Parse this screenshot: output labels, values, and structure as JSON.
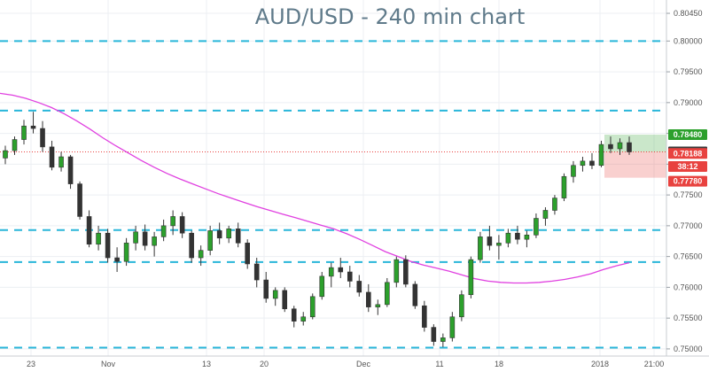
{
  "chart_data": {
    "type": "candlestick",
    "title": "AUD/USD - 240 min chart",
    "y_axis": {
      "position": "right",
      "range": [
        0.7497,
        0.8058
      ],
      "ticks": [
        "0.80450",
        "0.80000",
        "0.79500",
        "0.79000",
        "0.78500",
        "0.78000",
        "0.77500",
        "0.77000",
        "0.76500",
        "0.76000",
        "0.75500",
        "0.75000"
      ]
    },
    "x_axis": {
      "labels": [
        "23",
        "Nov",
        "13",
        "20",
        "Dec",
        "11",
        "18",
        "2018",
        "21:00"
      ]
    },
    "grid": true,
    "horizontal_levels": [
      0.8,
      0.7887,
      0.7693,
      0.7641,
      0.7502
    ],
    "series": [
      {
        "kind": "candles",
        "ohlc": [
          [
            0.781,
            0.783,
            0.78,
            0.7822
          ],
          [
            0.7822,
            0.7845,
            0.7815,
            0.784
          ],
          [
            0.784,
            0.7872,
            0.7832,
            0.7862
          ],
          [
            0.7862,
            0.7885,
            0.785,
            0.7858
          ],
          [
            0.7858,
            0.787,
            0.782,
            0.7828
          ],
          [
            0.7828,
            0.7838,
            0.779,
            0.7795
          ],
          [
            0.7795,
            0.782,
            0.7788,
            0.7812
          ],
          [
            0.7812,
            0.7815,
            0.776,
            0.7768
          ],
          [
            0.7768,
            0.7772,
            0.771,
            0.7715
          ],
          [
            0.7715,
            0.7725,
            0.7665,
            0.767
          ],
          [
            0.767,
            0.77,
            0.766,
            0.7688
          ],
          [
            0.7688,
            0.7695,
            0.764,
            0.7648
          ],
          [
            0.7648,
            0.7665,
            0.7625,
            0.7642
          ],
          [
            0.7642,
            0.768,
            0.7635,
            0.7672
          ],
          [
            0.7672,
            0.77,
            0.766,
            0.769
          ],
          [
            0.769,
            0.7702,
            0.766,
            0.7668
          ],
          [
            0.7668,
            0.769,
            0.765,
            0.7682
          ],
          [
            0.7682,
            0.771,
            0.7675,
            0.77
          ],
          [
            0.77,
            0.7725,
            0.7685,
            0.7715
          ],
          [
            0.7715,
            0.7722,
            0.768,
            0.7688
          ],
          [
            0.7688,
            0.7692,
            0.764,
            0.7648
          ],
          [
            0.7648,
            0.7668,
            0.7635,
            0.766
          ],
          [
            0.766,
            0.77,
            0.7652,
            0.7692
          ],
          [
            0.7692,
            0.7705,
            0.767,
            0.768
          ],
          [
            0.768,
            0.77,
            0.7672,
            0.7695
          ],
          [
            0.7695,
            0.7705,
            0.7665,
            0.7672
          ],
          [
            0.7672,
            0.7678,
            0.763,
            0.7638
          ],
          [
            0.7638,
            0.7648,
            0.76,
            0.7612
          ],
          [
            0.7612,
            0.7625,
            0.7575,
            0.7582
          ],
          [
            0.7582,
            0.76,
            0.757,
            0.7595
          ],
          [
            0.7595,
            0.76,
            0.756,
            0.7565
          ],
          [
            0.7565,
            0.757,
            0.7535,
            0.7545
          ],
          [
            0.7545,
            0.756,
            0.7538,
            0.7552
          ],
          [
            0.7552,
            0.759,
            0.7548,
            0.7585
          ],
          [
            0.7585,
            0.7625,
            0.758,
            0.7618
          ],
          [
            0.7618,
            0.764,
            0.76,
            0.7632
          ],
          [
            0.7632,
            0.7648,
            0.7615,
            0.7625
          ],
          [
            0.7625,
            0.7635,
            0.76,
            0.761
          ],
          [
            0.761,
            0.762,
            0.7585,
            0.7592
          ],
          [
            0.7592,
            0.7605,
            0.756,
            0.7568
          ],
          [
            0.7568,
            0.758,
            0.7555,
            0.7572
          ],
          [
            0.7572,
            0.7615,
            0.7568,
            0.7608
          ],
          [
            0.7608,
            0.765,
            0.76,
            0.7645
          ],
          [
            0.7645,
            0.7652,
            0.76,
            0.7605
          ],
          [
            0.7605,
            0.761,
            0.7565,
            0.757
          ],
          [
            0.757,
            0.7578,
            0.7528,
            0.7535
          ],
          [
            0.7535,
            0.754,
            0.7505,
            0.7512
          ],
          [
            0.7512,
            0.7525,
            0.7503,
            0.7518
          ],
          [
            0.7518,
            0.756,
            0.7512,
            0.7552
          ],
          [
            0.7552,
            0.7595,
            0.7545,
            0.7588
          ],
          [
            0.7588,
            0.765,
            0.7582,
            0.7645
          ],
          [
            0.7645,
            0.769,
            0.764,
            0.7682
          ],
          [
            0.7682,
            0.77,
            0.766,
            0.7668
          ],
          [
            0.7668,
            0.7685,
            0.7645,
            0.7672
          ],
          [
            0.7672,
            0.7695,
            0.7665,
            0.7688
          ],
          [
            0.7688,
            0.77,
            0.767,
            0.7678
          ],
          [
            0.7678,
            0.7692,
            0.7665,
            0.7685
          ],
          [
            0.7685,
            0.772,
            0.768,
            0.7712
          ],
          [
            0.7712,
            0.773,
            0.77,
            0.7725
          ],
          [
            0.7725,
            0.775,
            0.7718,
            0.7745
          ],
          [
            0.7745,
            0.7785,
            0.774,
            0.778
          ],
          [
            0.778,
            0.7805,
            0.777,
            0.7798
          ],
          [
            0.7798,
            0.7812,
            0.7788,
            0.7805
          ],
          [
            0.7805,
            0.7818,
            0.7792,
            0.7798
          ],
          [
            0.7798,
            0.7838,
            0.7795,
            0.7832
          ],
          [
            0.7832,
            0.7845,
            0.7818,
            0.7825
          ],
          [
            0.7825,
            0.7842,
            0.7815,
            0.7835
          ],
          [
            0.7835,
            0.7845,
            0.7815,
            0.782
          ]
        ]
      },
      {
        "kind": "moving_average",
        "color": "#e040e0",
        "values": [
          0.7915,
          0.7912,
          0.7907,
          0.79,
          0.7892,
          0.7882,
          0.787,
          0.7857,
          0.7843,
          0.783,
          0.7818,
          0.7806,
          0.7795,
          0.7785,
          0.7776,
          0.7768,
          0.776,
          0.7752,
          0.7745,
          0.7738,
          0.7731,
          0.7725,
          0.7719,
          0.7713,
          0.7707,
          0.7701,
          0.7695,
          0.7687,
          0.7678,
          0.7668,
          0.7658,
          0.765,
          0.7642,
          0.7636,
          0.7631,
          0.7626,
          0.762,
          0.7614,
          0.761,
          0.7608,
          0.7607,
          0.7607,
          0.7608,
          0.761,
          0.7613,
          0.7617,
          0.7622,
          0.7629,
          0.7635,
          0.764
        ]
      }
    ],
    "price_labels": [
      {
        "text": "0.78480",
        "value": 0.7848,
        "color": "#2ca02c"
      },
      {
        "text": "0.78200",
        "value": 0.782,
        "color": "#3a3a3a"
      },
      {
        "text": "0.78188",
        "value": 0.78188,
        "color": "#e8423f"
      },
      {
        "text": "38:12",
        "value": 0.7802,
        "color": "#e8423f"
      },
      {
        "text": "0.77780",
        "value": 0.7778,
        "color": "#e8423f"
      }
    ],
    "position_zone": {
      "entry": 0.782,
      "target": 0.7848,
      "stop": 0.7778
    },
    "colors": {
      "up": "#2ca02c",
      "down": "#333333",
      "level_line": "#29b6d9",
      "grid": "#eceff3"
    }
  }
}
